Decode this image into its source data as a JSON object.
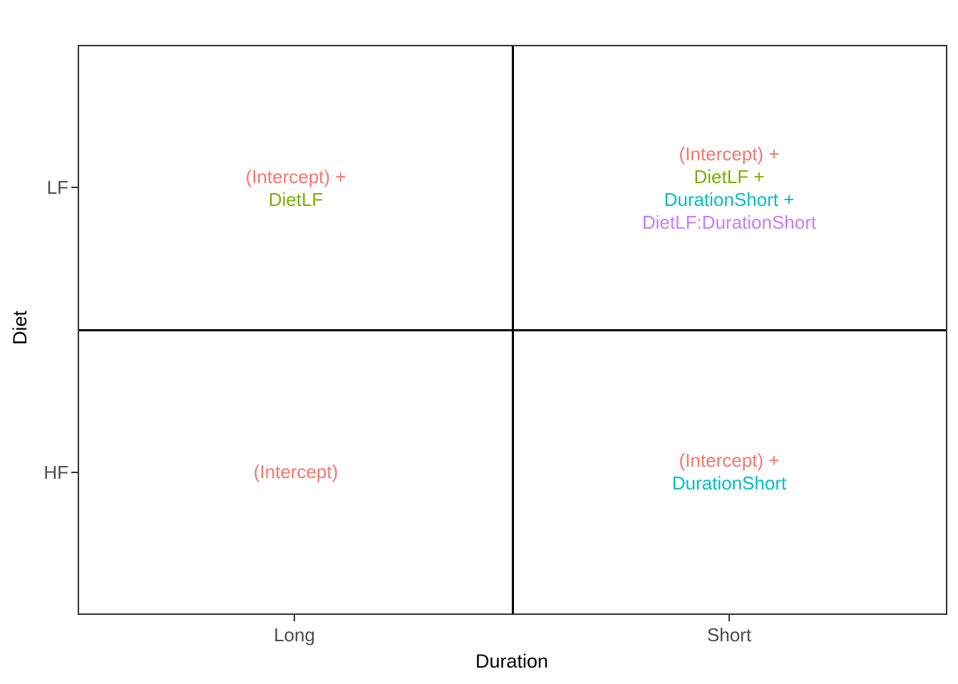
{
  "chart_data": {
    "type": "table",
    "title": "",
    "xlabel": "Duration",
    "ylabel": "Diet",
    "x_categories": [
      "Long",
      "Short"
    ],
    "y_categories": [
      "LF",
      "HF"
    ],
    "legend": "none",
    "grid": "off",
    "palette": {
      "intercept": "#F8766D",
      "diet_lf": "#7CAE00",
      "duration_short": "#00BFC4",
      "interaction": "#C77CFF",
      "axis_text": "#4D4D4D",
      "axis_title": "#000000",
      "panel_border": "#333333",
      "divider_lines": "#000000",
      "background": "#FFFFFF"
    },
    "cells": [
      {
        "diet": "LF",
        "duration": "Long",
        "terms": [
          {
            "label": "(Intercept) +",
            "color": "#F8766D"
          },
          {
            "label": "DietLF",
            "color": "#7CAE00"
          }
        ]
      },
      {
        "diet": "LF",
        "duration": "Short",
        "terms": [
          {
            "label": "(Intercept) +",
            "color": "#F8766D"
          },
          {
            "label": "DietLF +",
            "color": "#7CAE00"
          },
          {
            "label": "DurationShort +",
            "color": "#00BFC4"
          },
          {
            "label": "DietLF:DurationShort",
            "color": "#C77CFF"
          }
        ]
      },
      {
        "diet": "HF",
        "duration": "Long",
        "terms": [
          {
            "label": "(Intercept)",
            "color": "#F8766D"
          }
        ]
      },
      {
        "diet": "HF",
        "duration": "Short",
        "terms": [
          {
            "label": "(Intercept) +",
            "color": "#F8766D"
          },
          {
            "label": "DurationShort",
            "color": "#00BFC4"
          }
        ]
      }
    ]
  },
  "axes": {
    "x": {
      "title": "Duration",
      "ticks": [
        "Long",
        "Short"
      ]
    },
    "y": {
      "title": "Diet",
      "ticks": [
        "LF",
        "HF"
      ]
    }
  }
}
